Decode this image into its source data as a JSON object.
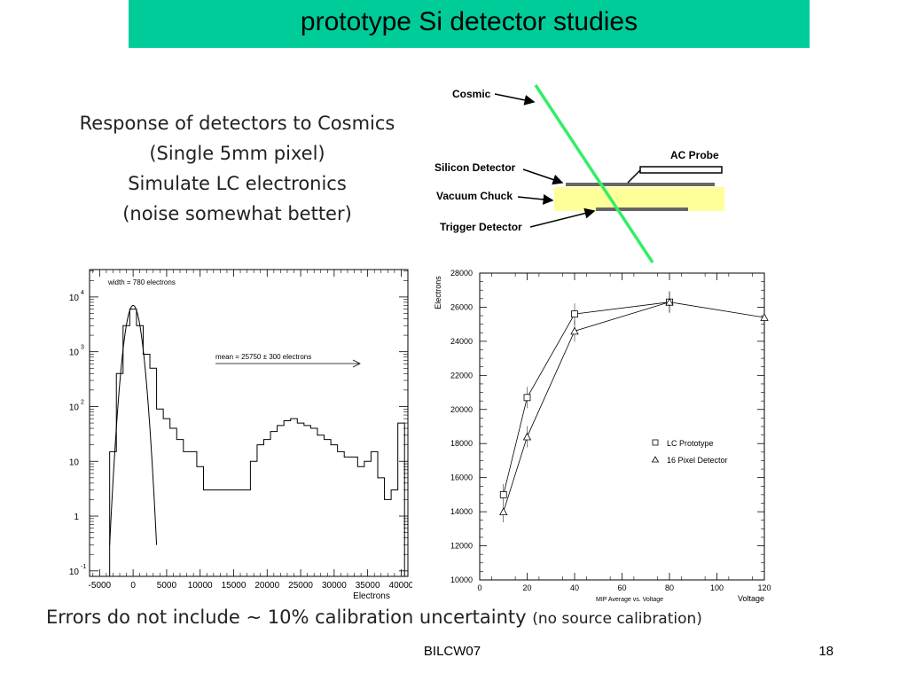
{
  "slide": {
    "title": "prototype Si detector studies",
    "description": [
      "Response of detectors to Cosmics",
      "(Single 5mm pixel)",
      "Simulate LC electronics",
      "(noise somewhat better)"
    ],
    "footnote_main": "Errors do not include ∼ 10% calibration uncertainty",
    "footnote_small": "(no source calibration)",
    "footer": "BILCW07",
    "page_number": "18"
  },
  "diagram": {
    "labels": {
      "cosmic": "Cosmic",
      "ac_probe": "AC Probe",
      "silicon": "Silicon Detector",
      "vacuum": "Vacuum Chuck",
      "trigger": "Trigger Detector"
    },
    "colors": {
      "track": "#33ee66",
      "chuck": "#ffff99",
      "plate": "#666666"
    }
  },
  "chart_data": [
    {
      "type": "histogram",
      "xlabel": "Electrons",
      "ylabel": "",
      "x_ticks": [
        -5000,
        0,
        5000,
        10000,
        15000,
        20000,
        25000,
        30000,
        35000,
        40000
      ],
      "y_scale": "log",
      "y_ticks": [
        {
          "base": "10",
          "exp": "-1"
        },
        {
          "base": "1",
          "exp": ""
        },
        {
          "base": "10",
          "exp": ""
        },
        {
          "base": "10",
          "exp": "2"
        },
        {
          "base": "10",
          "exp": "3"
        },
        {
          "base": "10",
          "exp": "4"
        }
      ],
      "annotation_width": "width = 780 electrons",
      "annotation_mean": "mean = 25750 ± 300 electrons",
      "xlim": [
        -6500,
        41000
      ],
      "hist_x": [
        -4000,
        -3000,
        -2000,
        -1000,
        0,
        1000,
        2000,
        3000,
        4000,
        5000,
        6000,
        7000,
        8000,
        9000,
        10000,
        11000,
        12000,
        13000,
        14000,
        15000,
        16000,
        17000,
        18000,
        19000,
        20000,
        21000,
        22000,
        23000,
        24000,
        25000,
        26000,
        27000,
        28000,
        29000,
        30000,
        31000,
        32000,
        33000,
        34000,
        35000,
        36000,
        37000,
        38000,
        39000,
        40000
      ],
      "hist_counts": [
        0.05,
        15,
        400,
        3000,
        6000,
        3000,
        900,
        500,
        90,
        60,
        40,
        25,
        15,
        15,
        8,
        3,
        3,
        3,
        3,
        3,
        3,
        3,
        10,
        20,
        25,
        35,
        45,
        55,
        60,
        50,
        45,
        40,
        30,
        25,
        20,
        15,
        12,
        12,
        8,
        10,
        15,
        5,
        2,
        3,
        50
      ],
      "gauss_mean": 0,
      "gauss_sigma": 780,
      "gauss_peak": 7000
    },
    {
      "type": "scatter",
      "xlabel": "Voltage",
      "ylabel": "Electrons",
      "caption": "MIP Average vs. Voltage",
      "xlim": [
        0,
        120
      ],
      "ylim": [
        10000,
        28000
      ],
      "x_ticks": [
        0,
        20,
        40,
        60,
        80,
        100,
        120
      ],
      "y_ticks": [
        10000,
        12000,
        14000,
        16000,
        18000,
        20000,
        22000,
        24000,
        26000,
        28000
      ],
      "legend_position": "right",
      "series": [
        {
          "name": "LC Prototype",
          "marker": "square",
          "x": [
            10,
            20,
            40,
            80
          ],
          "y": [
            15000,
            20700,
            25600,
            26300
          ]
        },
        {
          "name": "16 Pixel Detector",
          "marker": "triangle",
          "x": [
            10,
            20,
            40,
            80,
            120
          ],
          "y": [
            14000,
            18400,
            24600,
            26300,
            25400
          ]
        }
      ]
    }
  ]
}
